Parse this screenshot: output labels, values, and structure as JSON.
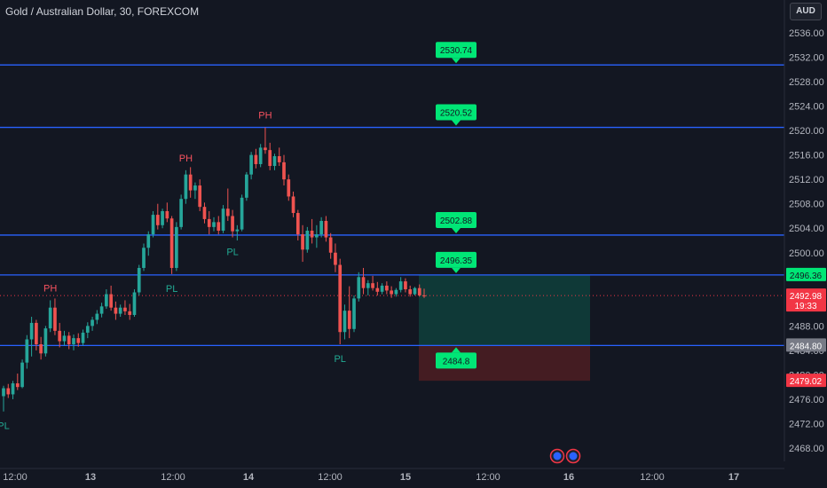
{
  "header": {
    "title": "Gold / Australian Dollar, 30, FOREXCOM",
    "currency": "AUD"
  },
  "colors": {
    "up": "#26a69a",
    "down": "#ef5350",
    "level_line": "#2962ff",
    "level_box": "#00e676",
    "profit_zone": "#0f3d3a",
    "loss_zone": "#4a1d22",
    "current_price": "#f23645"
  },
  "chart_data": {
    "type": "candlestick",
    "y_axis": {
      "min": 2466,
      "max": 2538,
      "ticks": [
        "2536.00",
        "2532.00",
        "2528.00",
        "2524.00",
        "2520.00",
        "2516.00",
        "2512.00",
        "2508.00",
        "2504.00",
        "2500.00",
        "2496.00",
        "2492.00",
        "2488.00",
        "2484.00",
        "2480.00",
        "2476.00",
        "2472.00",
        "2468.00"
      ]
    },
    "x_axis": {
      "labels": [
        "12:00",
        "13",
        "12:00",
        "14",
        "12:00",
        "15",
        "12:00",
        "16",
        "12:00",
        "17"
      ]
    },
    "candles": [
      [
        2476.5,
        2478.2,
        2474.0,
        2477.8
      ],
      [
        2477.8,
        2478.5,
        2476.2,
        2476.8
      ],
      [
        2476.8,
        2479.0,
        2476.0,
        2478.6
      ],
      [
        2478.6,
        2480.2,
        2477.5,
        2478.0
      ],
      [
        2478.0,
        2482.5,
        2477.8,
        2482.0
      ],
      [
        2482.0,
        2486.5,
        2481.0,
        2485.8
      ],
      [
        2485.8,
        2489.5,
        2483.0,
        2488.5
      ],
      [
        2488.5,
        2489.0,
        2484.0,
        2485.0
      ],
      [
        2485.0,
        2486.2,
        2482.5,
        2483.5
      ],
      [
        2483.5,
        2488.0,
        2483.0,
        2487.6
      ],
      [
        2487.6,
        2492.2,
        2487.0,
        2491.0
      ],
      [
        2491.0,
        2492.5,
        2486.5,
        2487.2
      ],
      [
        2487.2,
        2488.5,
        2484.5,
        2485.5
      ],
      [
        2485.5,
        2487.2,
        2484.8,
        2486.4
      ],
      [
        2486.4,
        2487.0,
        2484.2,
        2485.0
      ],
      [
        2485.0,
        2486.6,
        2484.0,
        2486.0
      ],
      [
        2486.0,
        2486.8,
        2484.6,
        2485.2
      ],
      [
        2485.2,
        2487.4,
        2484.8,
        2486.9
      ],
      [
        2486.9,
        2488.6,
        2486.0,
        2488.0
      ],
      [
        2488.0,
        2489.5,
        2487.2,
        2489.0
      ],
      [
        2489.0,
        2490.6,
        2488.3,
        2490.0
      ],
      [
        2490.0,
        2491.8,
        2489.4,
        2491.2
      ],
      [
        2491.2,
        2494.0,
        2490.8,
        2493.2
      ],
      [
        2493.2,
        2494.6,
        2490.5,
        2491.0
      ],
      [
        2491.0,
        2492.0,
        2489.0,
        2490.0
      ],
      [
        2490.0,
        2491.5,
        2489.5,
        2491.0
      ],
      [
        2491.0,
        2492.2,
        2489.8,
        2490.4
      ],
      [
        2490.4,
        2491.6,
        2489.0,
        2489.8
      ],
      [
        2489.8,
        2494.0,
        2489.5,
        2493.5
      ],
      [
        2493.5,
        2498.0,
        2493.0,
        2497.5
      ],
      [
        2497.5,
        2501.5,
        2497.0,
        2500.8
      ],
      [
        2500.8,
        2503.5,
        2499.5,
        2503.0
      ],
      [
        2503.0,
        2506.8,
        2502.5,
        2506.2
      ],
      [
        2506.2,
        2508.0,
        2503.8,
        2504.5
      ],
      [
        2504.5,
        2507.2,
        2504.0,
        2506.8
      ],
      [
        2506.8,
        2508.2,
        2505.0,
        2505.6
      ],
      [
        2505.6,
        2506.0,
        2496.5,
        2497.5
      ],
      [
        2497.5,
        2505.0,
        2497.0,
        2504.2
      ],
      [
        2504.2,
        2509.5,
        2503.8,
        2508.8
      ],
      [
        2508.8,
        2513.5,
        2508.0,
        2512.8
      ],
      [
        2512.8,
        2514.0,
        2509.0,
        2510.2
      ],
      [
        2510.2,
        2511.5,
        2508.8,
        2511.0
      ],
      [
        2511.0,
        2512.0,
        2506.8,
        2507.5
      ],
      [
        2507.5,
        2508.2,
        2504.8,
        2505.5
      ],
      [
        2505.5,
        2506.8,
        2503.0,
        2504.2
      ],
      [
        2504.2,
        2505.8,
        2503.5,
        2505.0
      ],
      [
        2505.0,
        2506.0,
        2503.0,
        2503.6
      ],
      [
        2503.6,
        2507.8,
        2503.2,
        2507.2
      ],
      [
        2507.2,
        2510.5,
        2505.2,
        2506.0
      ],
      [
        2506.0,
        2507.0,
        2502.5,
        2503.5
      ],
      [
        2503.5,
        2504.5,
        2502.0,
        2503.8
      ],
      [
        2503.8,
        2509.5,
        2503.5,
        2509.0
      ],
      [
        2509.0,
        2513.2,
        2508.5,
        2512.8
      ],
      [
        2512.8,
        2516.5,
        2512.0,
        2516.0
      ],
      [
        2516.0,
        2517.0,
        2513.8,
        2514.5
      ],
      [
        2514.5,
        2517.8,
        2514.0,
        2517.2
      ],
      [
        2517.2,
        2520.5,
        2516.2,
        2516.8
      ],
      [
        2516.8,
        2518.0,
        2513.5,
        2514.2
      ],
      [
        2514.2,
        2516.2,
        2513.5,
        2515.8
      ],
      [
        2515.8,
        2517.2,
        2514.2,
        2514.8
      ],
      [
        2514.8,
        2516.0,
        2511.0,
        2512.0
      ],
      [
        2512.0,
        2512.8,
        2508.5,
        2509.2
      ],
      [
        2509.2,
        2510.0,
        2505.8,
        2506.5
      ],
      [
        2506.5,
        2507.0,
        2502.0,
        2503.0
      ],
      [
        2503.0,
        2504.5,
        2498.5,
        2500.5
      ],
      [
        2500.5,
        2504.2,
        2500.0,
        2503.6
      ],
      [
        2503.6,
        2505.5,
        2501.5,
        2502.5
      ],
      [
        2502.5,
        2504.5,
        2500.8,
        2503.0
      ],
      [
        2503.0,
        2505.8,
        2502.5,
        2505.2
      ],
      [
        2505.2,
        2506.0,
        2501.8,
        2502.5
      ],
      [
        2502.5,
        2503.2,
        2499.0,
        2500.0
      ],
      [
        2500.0,
        2501.5,
        2496.8,
        2498.0
      ],
      [
        2498.0,
        2499.0,
        2485.0,
        2487.0
      ],
      [
        2487.0,
        2491.5,
        2485.8,
        2490.5
      ],
      [
        2490.5,
        2494.5,
        2486.0,
        2487.5
      ],
      [
        2487.5,
        2493.0,
        2487.0,
        2492.5
      ],
      [
        2492.5,
        2496.8,
        2492.0,
        2496.0
      ],
      [
        2496.0,
        2497.5,
        2493.2,
        2494.2
      ],
      [
        2494.2,
        2495.5,
        2493.0,
        2495.0
      ],
      [
        2495.0,
        2496.2,
        2493.8,
        2494.2
      ],
      [
        2494.2,
        2495.2,
        2493.0,
        2493.6
      ],
      [
        2493.6,
        2495.0,
        2493.2,
        2494.6
      ],
      [
        2494.6,
        2495.3,
        2493.2,
        2493.8
      ],
      [
        2493.8,
        2494.5,
        2492.6,
        2493.2
      ],
      [
        2493.2,
        2494.2,
        2492.8,
        2493.9
      ],
      [
        2493.9,
        2496.0,
        2493.5,
        2495.3
      ],
      [
        2495.3,
        2495.8,
        2493.5,
        2494.0
      ],
      [
        2494.0,
        2494.6,
        2492.8,
        2493.2
      ],
      [
        2493.2,
        2494.4,
        2493.0,
        2494.2
      ],
      [
        2494.2,
        2494.8,
        2492.8,
        2493.0
      ],
      [
        2493.0,
        2494.1,
        2492.6,
        2492.98
      ]
    ],
    "pivots": [
      {
        "label": "PH",
        "index": 10
      },
      {
        "label": "PL",
        "index": 0
      },
      {
        "label": "PL",
        "index": 36
      },
      {
        "label": "PH",
        "index": 39
      },
      {
        "label": "PL",
        "index": 49
      },
      {
        "label": "PH",
        "index": 56
      },
      {
        "label": "PL",
        "index": 72
      }
    ],
    "levels": [
      {
        "value": 2530.74,
        "label": "2530.74"
      },
      {
        "value": 2520.52,
        "label": "2520.52"
      },
      {
        "value": 2502.88,
        "label": "2502.88"
      },
      {
        "value": 2496.35,
        "label": "2496.35"
      },
      {
        "value": 2484.8,
        "label": "2484.8"
      }
    ],
    "position": {
      "entry": 2496.35,
      "target": 2484.8,
      "stop": 2479.02
    },
    "price_tags": [
      {
        "value": 2496.36,
        "label": "2496.36",
        "color": "#00e676",
        "text_color": "#131722"
      },
      {
        "value": 2492.98,
        "label": "2492.98",
        "sub": "19:33",
        "color": "#f23645",
        "text_color": "#ffffff"
      },
      {
        "value": 2484.8,
        "label": "2484.80",
        "color": "#787b86",
        "text_color": "#ffffff"
      },
      {
        "value": 2479.02,
        "label": "2479.02",
        "color": "#f23645",
        "text_color": "#ffffff"
      }
    ],
    "current_price": 2492.98
  }
}
